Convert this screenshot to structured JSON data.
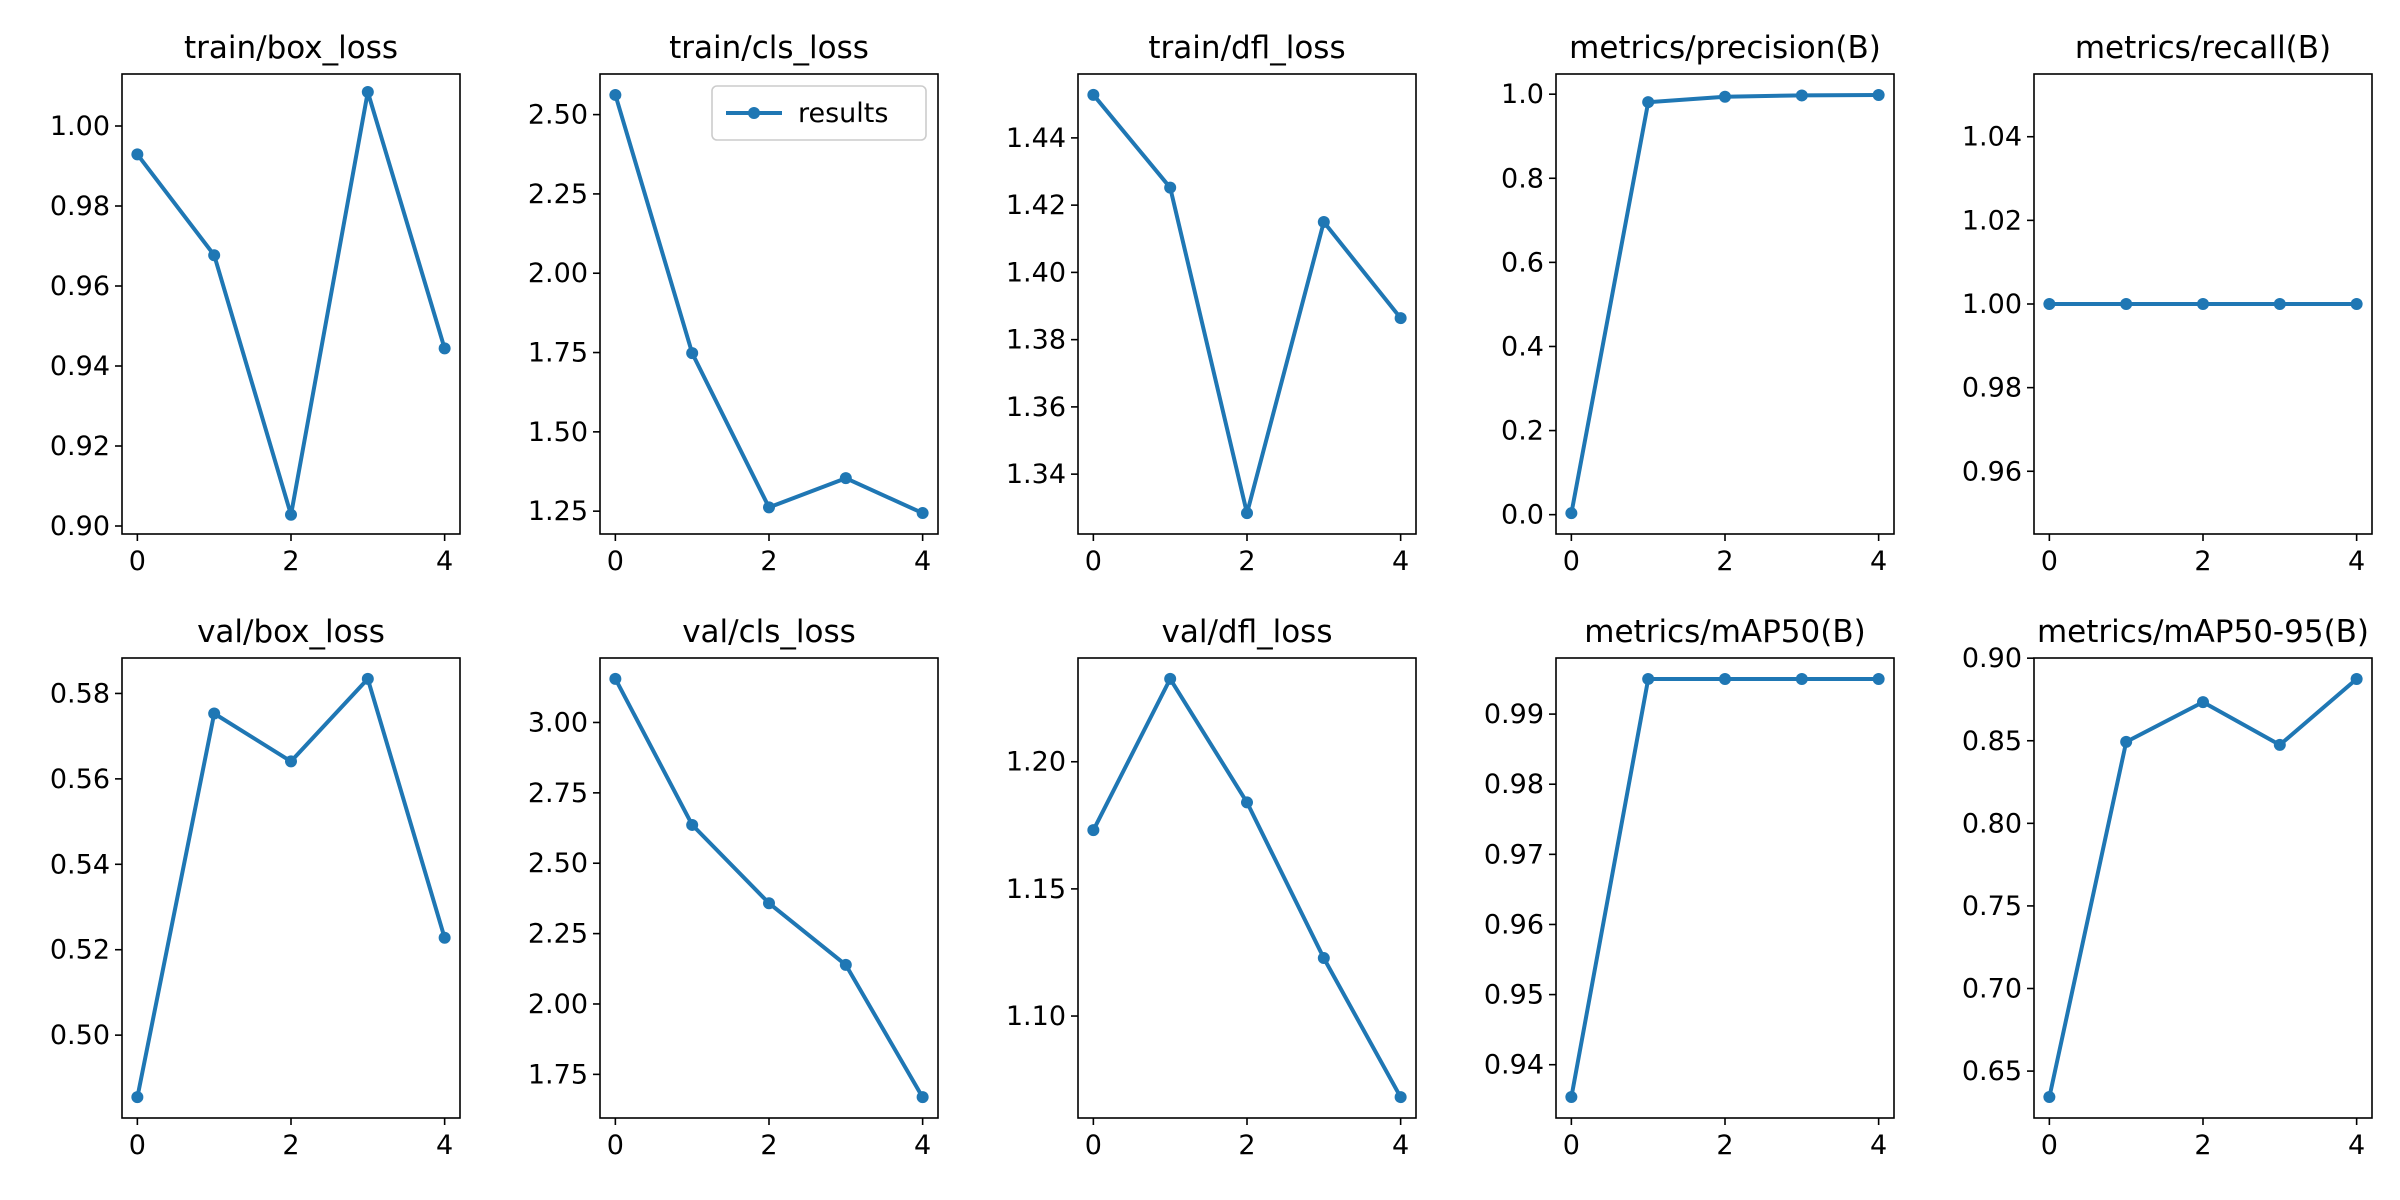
{
  "chart_data": [
    {
      "type": "line",
      "title": "train/box_loss",
      "series_name": "results",
      "x": [
        0,
        1,
        2,
        3,
        4
      ],
      "y": [
        0.9929,
        0.9677,
        0.9028,
        1.0085,
        0.9444
      ],
      "ylim": [
        0.898,
        1.013
      ],
      "xticks": [
        0,
        2,
        4
      ],
      "yticks": [
        0.9,
        0.92,
        0.94,
        0.96,
        0.98,
        1.0
      ],
      "ytick_labels": [
        "0.90",
        "0.92",
        "0.94",
        "0.96",
        "0.98",
        "1.00"
      ],
      "legend": false
    },
    {
      "type": "line",
      "title": "train/cls_loss",
      "series_name": "results",
      "x": [
        0,
        1,
        2,
        3,
        4
      ],
      "y": [
        2.562,
        1.748,
        1.262,
        1.354,
        1.244
      ],
      "ylim": [
        1.178,
        2.628
      ],
      "xticks": [
        0,
        2,
        4
      ],
      "yticks": [
        1.25,
        1.5,
        1.75,
        2.0,
        2.25,
        2.5
      ],
      "ytick_labels": [
        "1.25",
        "1.50",
        "1.75",
        "2.00",
        "2.25",
        "2.50"
      ],
      "legend": true,
      "legend_position": "top-right"
    },
    {
      "type": "line",
      "title": "train/dfl_loss",
      "series_name": "results",
      "x": [
        0,
        1,
        2,
        3,
        4
      ],
      "y": [
        1.4528,
        1.4252,
        1.3284,
        1.415,
        1.3864
      ],
      "ylim": [
        1.3222,
        1.459
      ],
      "xticks": [
        0,
        2,
        4
      ],
      "yticks": [
        1.34,
        1.36,
        1.38,
        1.4,
        1.42,
        1.44
      ],
      "ytick_labels": [
        "1.34",
        "1.36",
        "1.38",
        "1.40",
        "1.42",
        "1.44"
      ],
      "legend": false
    },
    {
      "type": "line",
      "title": "metrics/precision(B)",
      "series_name": "results",
      "x": [
        0,
        1,
        2,
        3,
        4
      ],
      "y": [
        0.0035,
        0.981,
        0.994,
        0.997,
        0.998
      ],
      "ylim": [
        -0.046,
        1.048
      ],
      "xticks": [
        0,
        2,
        4
      ],
      "yticks": [
        0.0,
        0.2,
        0.4,
        0.6,
        0.8,
        1.0
      ],
      "ytick_labels": [
        "0.0",
        "0.2",
        "0.4",
        "0.6",
        "0.8",
        "1.0"
      ],
      "legend": false
    },
    {
      "type": "line",
      "title": "metrics/recall(B)",
      "series_name": "results",
      "x": [
        0,
        1,
        2,
        3,
        4
      ],
      "y": [
        1.0,
        1.0,
        1.0,
        1.0,
        1.0
      ],
      "ylim": [
        0.945,
        1.055
      ],
      "xticks": [
        0,
        2,
        4
      ],
      "yticks": [
        0.96,
        0.98,
        1.0,
        1.02,
        1.04
      ],
      "ytick_labels": [
        "0.96",
        "0.98",
        "1.00",
        "1.02",
        "1.04"
      ],
      "legend": false
    },
    {
      "type": "line",
      "title": "val/box_loss",
      "series_name": "results",
      "x": [
        0,
        1,
        2,
        3,
        4
      ],
      "y": [
        0.4855,
        0.5753,
        0.5641,
        0.5834,
        0.5228
      ],
      "ylim": [
        0.4806,
        0.5883
      ],
      "xticks": [
        0,
        2,
        4
      ],
      "yticks": [
        0.5,
        0.52,
        0.54,
        0.56,
        0.58
      ],
      "ytick_labels": [
        "0.50",
        "0.52",
        "0.54",
        "0.56",
        "0.58"
      ],
      "legend": false
    },
    {
      "type": "line",
      "title": "val/cls_loss",
      "series_name": "results",
      "x": [
        0,
        1,
        2,
        3,
        4
      ],
      "y": [
        3.155,
        2.636,
        2.358,
        2.139,
        1.669
      ],
      "ylim": [
        1.595,
        3.229
      ],
      "xticks": [
        0,
        2,
        4
      ],
      "yticks": [
        1.75,
        2.0,
        2.25,
        2.5,
        2.75,
        3.0
      ],
      "ytick_labels": [
        "1.75",
        "2.00",
        "2.25",
        "2.50",
        "2.75",
        "3.00"
      ],
      "legend": false
    },
    {
      "type": "line",
      "title": "val/dfl_loss",
      "series_name": "results",
      "x": [
        0,
        1,
        2,
        3,
        4
      ],
      "y": [
        1.1731,
        1.2326,
        1.184,
        1.1228,
        1.0681
      ],
      "ylim": [
        1.0599,
        1.2408
      ],
      "xticks": [
        0,
        2,
        4
      ],
      "yticks": [
        1.1,
        1.15,
        1.2
      ],
      "ytick_labels": [
        "1.10",
        "1.15",
        "1.20"
      ],
      "legend": false
    },
    {
      "type": "line",
      "title": "metrics/mAP50(B)",
      "series_name": "results",
      "x": [
        0,
        1,
        2,
        3,
        4
      ],
      "y": [
        0.9354,
        0.995,
        0.995,
        0.995,
        0.995
      ],
      "ylim": [
        0.9324,
        0.998
      ],
      "xticks": [
        0,
        2,
        4
      ],
      "yticks": [
        0.94,
        0.95,
        0.96,
        0.97,
        0.98,
        0.99
      ],
      "ytick_labels": [
        "0.94",
        "0.95",
        "0.96",
        "0.97",
        "0.98",
        "0.99"
      ],
      "legend": false
    },
    {
      "type": "line",
      "title": "metrics/mAP50-95(B)",
      "series_name": "results",
      "x": [
        0,
        1,
        2,
        3,
        4
      ],
      "y": [
        0.6343,
        0.8493,
        0.8734,
        0.8475,
        0.8874
      ],
      "ylim": [
        0.6216,
        0.9001
      ],
      "xticks": [
        0,
        2,
        4
      ],
      "yticks": [
        0.65,
        0.7,
        0.75,
        0.8,
        0.85,
        0.9
      ],
      "ytick_labels": [
        "0.65",
        "0.70",
        "0.75",
        "0.80",
        "0.85",
        "0.90"
      ],
      "legend": false
    }
  ],
  "style": {
    "line_color": "#1f77b4",
    "frame_color": "#000000",
    "background": "#ffffff"
  }
}
